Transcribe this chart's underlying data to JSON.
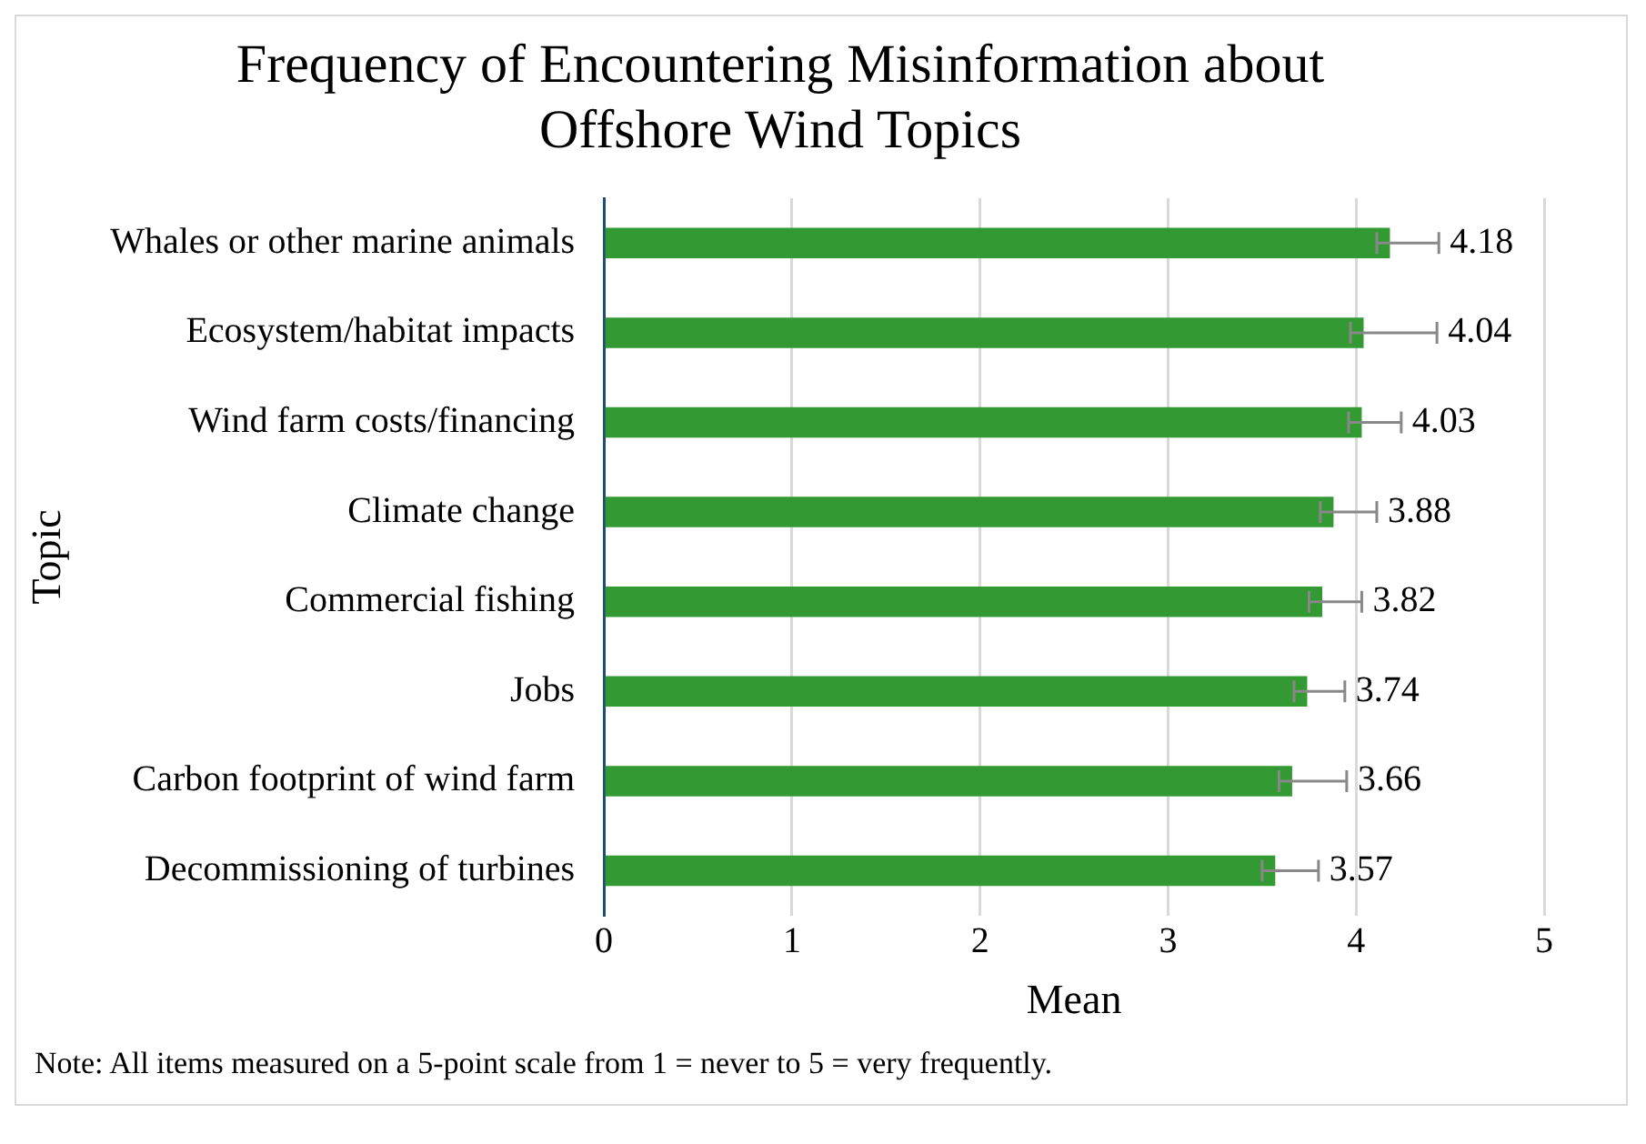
{
  "chart_data": {
    "type": "bar",
    "orientation": "horizontal",
    "title": "Frequency of Encountering Misinformation about Offshore Wind Topics",
    "xlabel": "Mean",
    "ylabel": "Topic",
    "categories": [
      "Whales or other marine animals",
      "Ecosystem/habitat impacts",
      "Wind farm costs/financing",
      "Climate change",
      "Commercial fishing",
      "Jobs",
      "Carbon footprint of wind farm",
      "Decommissioning of turbines"
    ],
    "values": [
      4.18,
      4.04,
      4.03,
      3.88,
      3.82,
      3.74,
      3.66,
      3.57
    ],
    "errors": [
      [
        4.11,
        4.44
      ],
      [
        3.97,
        4.43
      ],
      [
        3.96,
        4.24
      ],
      [
        3.81,
        4.11
      ],
      [
        3.75,
        4.03
      ],
      [
        3.67,
        3.94
      ],
      [
        3.59,
        3.95
      ],
      [
        3.5,
        3.8
      ]
    ],
    "color": "#339933",
    "xlim": [
      0,
      5
    ],
    "xticks": [
      0,
      1,
      2,
      3,
      4,
      5
    ],
    "grid": "x",
    "data_labels": true,
    "legend": false,
    "annotations": [
      "Note: All items measured on a 5-point scale from 1 = never to 5 = very frequently."
    ]
  }
}
